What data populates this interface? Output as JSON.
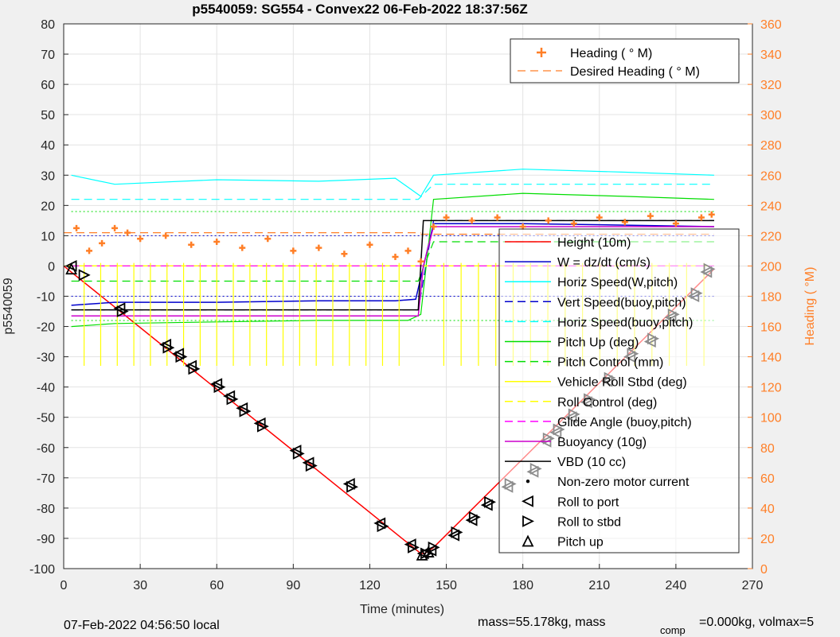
{
  "chart_data": {
    "type": "line",
    "title": "p5540059: SG554 - Convex22 06-Feb-2022 18:37:56Z",
    "xlabel": "Time (minutes)",
    "ylabel": "p5540059",
    "y2label": "Heading (  °M)",
    "xlim": [
      0,
      270
    ],
    "ylim": [
      -100,
      80
    ],
    "y2lim": [
      0,
      360
    ],
    "x_ticks": [
      "0",
      "30",
      "60",
      "90",
      "120",
      "150",
      "180",
      "210",
      "240",
      "270"
    ],
    "y_ticks": [
      "80",
      "70",
      "60",
      "50",
      "40",
      "30",
      "20",
      "10",
      "0",
      "-10",
      "-20",
      "-30",
      "-40",
      "-50",
      "-60",
      "-70",
      "-80",
      "-90",
      "-100"
    ],
    "y2_ticks": [
      "360",
      "340",
      "320",
      "300",
      "280",
      "260",
      "240",
      "220",
      "200",
      "180",
      "160",
      "140",
      "120",
      "100",
      "80",
      "60",
      "40",
      "20",
      "0"
    ],
    "grid": true,
    "colors": {
      "heading": "#ff7f27",
      "height": "#ff0000",
      "w": "#0000cc",
      "horiz": "#00ffff",
      "pitch": "#00dd00",
      "roll": "#ffff00",
      "glide": "#ff00ff",
      "buoy": "#cc00cc",
      "vbd": "#000000"
    },
    "legend_heading": {
      "placement": "top-right",
      "entries": [
        "Heading (  ° M)",
        "Desired Heading (    ° M)"
      ]
    },
    "legend_main": {
      "placement": "right",
      "entries": [
        "Height (10m)",
        "W = dz/dt (cm/s)",
        "Horiz Speed(W,pitch)",
        "Vert Speed(buoy,pitch)",
        "Horiz Speed(buoy,pitch)",
        "Pitch Up (deg)",
        "Pitch Control (mm)",
        "Vehicle Roll Stbd (deg)",
        "Roll Control (deg)",
        "Glide Angle (buoy,pitch)",
        "Buoyancy (10g)",
        "VBD (10 cc)",
        "Non-zero motor current",
        "Roll to port",
        "Roll to stbd",
        "Pitch up"
      ]
    },
    "series": [
      {
        "name": "Height (10m)",
        "x": [
          0,
          140,
          141.5,
          145,
          255
        ],
        "y": [
          0,
          -95,
          -95,
          -93,
          -1
        ]
      },
      {
        "name": "W = dz/dt (cm/s)",
        "x": [
          3,
          20,
          60,
          100,
          130,
          138,
          145,
          180,
          220,
          255
        ],
        "y": [
          -13,
          -12,
          -12,
          -11.5,
          -11.5,
          -11,
          14,
          14,
          13.5,
          13
        ]
      },
      {
        "name": "Horiz Speed(W,pitch)",
        "x": [
          3,
          20,
          60,
          100,
          130,
          140,
          145,
          180,
          220,
          255
        ],
        "y": [
          30,
          27,
          28.5,
          28,
          29,
          23,
          30,
          32,
          31,
          30
        ]
      },
      {
        "name": "Vert Speed(buoy,pitch)",
        "x": [
          3,
          139,
          145,
          255
        ],
        "y": [
          -14.5,
          -14.5,
          15,
          15
        ]
      },
      {
        "name": "Horiz Speed(buoy,pitch)",
        "x": [
          3,
          139,
          145,
          255
        ],
        "y": [
          22,
          22,
          27,
          27
        ]
      },
      {
        "name": "Pitch Up (deg)",
        "x": [
          3,
          20,
          60,
          100,
          135,
          140,
          145,
          180,
          220,
          255
        ],
        "y": [
          -20,
          -19,
          -18.5,
          -18,
          -18,
          -16,
          22,
          24,
          23,
          22
        ]
      },
      {
        "name": "Pitch Control (mm)",
        "x": [
          3,
          139,
          145,
          255
        ],
        "y": [
          -5,
          -5,
          8,
          8
        ]
      },
      {
        "name": "Vehicle Roll Stbd (deg)",
        "x": [
          3,
          140,
          145,
          255
        ],
        "y": [
          0,
          0,
          0,
          0
        ]
      },
      {
        "name": "Roll Control (deg)",
        "x": [
          0,
          255
        ],
        "y": [
          0,
          0
        ]
      },
      {
        "name": "Glide Angle (buoy,pitch)",
        "x": [
          3,
          139,
          145,
          255
        ],
        "y": [
          0,
          0,
          0,
          0
        ]
      },
      {
        "name": "Buoyancy (10g)",
        "x": [
          3,
          139,
          141,
          145,
          255
        ],
        "y": [
          -16.5,
          -16.5,
          0,
          13,
          13
        ]
      },
      {
        "name": "VBD (10 cc)",
        "x": [
          3,
          139,
          141,
          255
        ],
        "y": [
          -14.5,
          -14.5,
          15,
          15
        ]
      }
    ],
    "heading_series": {
      "name": "Heading (  ° M)",
      "x": [
        5,
        10,
        15,
        20,
        25,
        30,
        40,
        50,
        60,
        70,
        80,
        90,
        100,
        110,
        120,
        130,
        135,
        140,
        145,
        150,
        160,
        170,
        180,
        190,
        200,
        210,
        220,
        230,
        240,
        250,
        254
      ],
      "y": [
        225,
        210,
        215,
        225,
        222,
        218,
        220,
        214,
        216,
        212,
        218,
        210,
        212,
        208,
        214,
        206,
        210,
        203,
        226,
        232,
        230,
        232,
        226,
        230,
        228,
        232,
        229,
        233,
        228,
        232,
        234
      ]
    },
    "desired_heading": [
      {
        "x": [
          0,
          140
        ],
        "y": [
          222,
          222
        ]
      },
      {
        "x": [
          140,
          255
        ],
        "y": [
          221,
          221
        ]
      }
    ],
    "markers": {
      "roll_to_port": {
        "x": [
          3,
          22,
          40,
          45,
          50,
          60,
          65,
          70,
          77,
          91,
          96,
          112,
          124,
          136,
          141,
          144,
          153,
          160,
          166,
          174,
          184,
          189,
          193,
          199,
          205,
          213,
          222,
          230,
          238,
          247,
          252
        ],
        "y": [
          0,
          -14,
          -26,
          -29,
          -33,
          -39,
          -43,
          -47,
          -52,
          -61,
          -65,
          -72,
          -85,
          -92,
          -95,
          -94,
          -89,
          -84,
          -79,
          -73,
          -68,
          -58,
          -55,
          -50,
          -45,
          -38,
          -30,
          -25,
          -17,
          -10,
          -2
        ]
      },
      "roll_to_stbd": {
        "x": [
          8,
          23,
          41,
          46,
          51,
          61,
          66,
          71,
          78,
          92,
          97,
          113,
          125,
          137,
          142,
          145,
          154,
          161,
          167,
          175,
          185,
          190,
          194,
          200,
          206,
          214,
          223,
          231,
          239,
          248,
          253
        ],
        "y": [
          -3,
          -15,
          -27,
          -30,
          -34,
          -40,
          -44,
          -48,
          -53,
          -62,
          -66,
          -73,
          -86,
          -93,
          -95,
          -93,
          -88,
          -83,
          -78,
          -72,
          -67,
          -57,
          -54,
          -49,
          -44,
          -37,
          -29,
          -24,
          -16,
          -9,
          -1
        ]
      },
      "pitch_up": {
        "x": [
          3,
          140.5,
          143
        ],
        "y": [
          -1,
          -95.5,
          -94.5
        ]
      }
    },
    "footer": {
      "left": "07-Feb-2022 04:56:50 local",
      "mid": "mass=55.178kg, mass",
      "comp": "comp",
      "right": "=0.000kg, volmax=5"
    }
  }
}
